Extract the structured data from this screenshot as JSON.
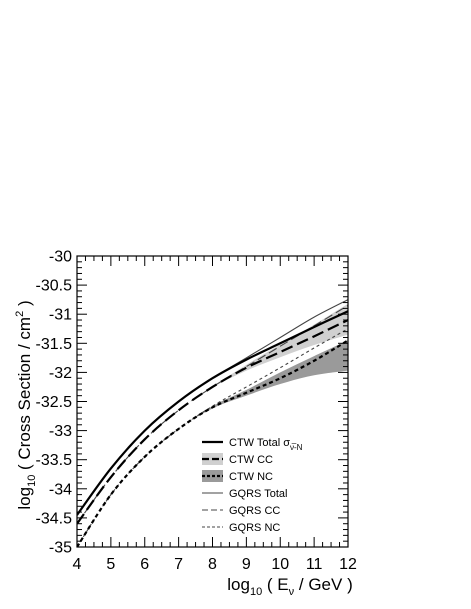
{
  "chart_data": {
    "type": "line",
    "xlabel": {
      "prefix": "log",
      "prefix_sub": "10",
      "open": " ( E",
      "var_sub": "ν",
      "unit": " / GeV )"
    },
    "ylabel": {
      "prefix": "log",
      "prefix_sub": "10",
      "text": " ( Cross Section / cm",
      "sup": "2",
      "close": " )"
    },
    "xlim": [
      4,
      12
    ],
    "ylim": [
      -35,
      -30
    ],
    "x_ticks": [
      "4",
      "5",
      "6",
      "7",
      "8",
      "9",
      "10",
      "11",
      "12"
    ],
    "y_ticks": [
      "-30",
      "-30.5",
      "-31",
      "-31.5",
      "-32",
      "-32.5",
      "-33",
      "-33.5",
      "-34",
      "-34.5",
      "-35"
    ],
    "x_tick_values": [
      4,
      5,
      6,
      7,
      8,
      9,
      10,
      11,
      12
    ],
    "y_tick_values": [
      -30,
      -30.5,
      -31,
      -31.5,
      -32,
      -32.5,
      -33,
      -33.5,
      -34,
      -34.5,
      -35
    ],
    "grid": false,
    "legend_position": "bottom-right",
    "x": [
      4,
      5,
      6,
      7,
      8,
      9,
      10,
      11,
      12
    ],
    "series": [
      {
        "name": "CTW Total",
        "values": [
          -34.45,
          -33.65,
          -33.0,
          -32.5,
          -32.1,
          -31.78,
          -31.5,
          -31.22,
          -30.95
        ]
      },
      {
        "name": "CTW CC",
        "values": [
          -34.6,
          -33.8,
          -33.15,
          -32.65,
          -32.25,
          -31.92,
          -31.65,
          -31.38,
          -31.1
        ]
      },
      {
        "name": "CTW NC",
        "values": [
          -35.0,
          -34.1,
          -33.45,
          -32.97,
          -32.6,
          -32.35,
          -32.1,
          -31.8,
          -31.45
        ]
      },
      {
        "name": "GQRS Total",
        "values": [
          -34.45,
          -33.65,
          -33.0,
          -32.5,
          -32.1,
          -31.75,
          -31.4,
          -31.05,
          -30.75
        ]
      },
      {
        "name": "GQRS CC",
        "values": [
          -34.6,
          -33.8,
          -33.15,
          -32.65,
          -32.25,
          -31.9,
          -31.55,
          -31.2,
          -30.85
        ]
      },
      {
        "name": "GQRS NC",
        "values": [
          -35.0,
          -34.1,
          -33.45,
          -32.97,
          -32.58,
          -32.25,
          -31.92,
          -31.58,
          -31.25
        ]
      }
    ],
    "bands": [
      {
        "series": "CTW CC",
        "lower": [
          -34.6,
          -33.8,
          -33.15,
          -32.65,
          -32.26,
          -31.97,
          -31.74,
          -31.53,
          -31.35
        ],
        "upper": [
          -34.6,
          -33.8,
          -33.15,
          -32.65,
          -32.24,
          -31.87,
          -31.52,
          -31.18,
          -30.82
        ]
      },
      {
        "series": "CTW NC",
        "lower": [
          -35.0,
          -34.1,
          -33.45,
          -32.97,
          -32.62,
          -32.4,
          -32.2,
          -32.05,
          -31.97
        ],
        "upper": [
          -35.0,
          -34.1,
          -33.45,
          -32.97,
          -32.58,
          -32.3,
          -32.0,
          -31.72,
          -31.45
        ]
      }
    ],
    "legend": [
      {
        "key": "ctw-total",
        "label": "CTW Total σ",
        "sub": "ν̅-N"
      },
      {
        "key": "ctw-cc",
        "label": "CTW CC",
        "sub": ""
      },
      {
        "key": "ctw-nc",
        "label": "CTW NC",
        "sub": ""
      },
      {
        "key": "gqrs-total",
        "label": "GQRS Total",
        "sub": ""
      },
      {
        "key": "gqrs-cc",
        "label": "GQRS CC",
        "sub": ""
      },
      {
        "key": "gqrs-nc",
        "label": "GQRS NC",
        "sub": ""
      }
    ],
    "colors": {
      "line": "#000000",
      "gqrs_line": "#444444",
      "band_cc": "#d0d0d0",
      "band_nc": "#9a9a9a"
    }
  }
}
